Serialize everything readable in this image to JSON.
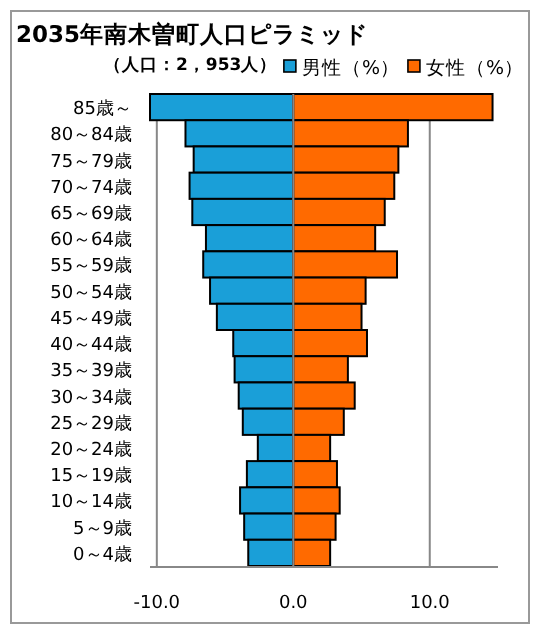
{
  "chart_data": {
    "type": "bar",
    "orientation": "horizontal",
    "title": "2035年南木曽町人口ピラミッド",
    "subtitle": "（人口：2，953人）",
    "categories": [
      "85歳～",
      "80～84歳",
      "75～79歳",
      "70～74歳",
      "65～69歳",
      "60～64歳",
      "55～59歳",
      "50～54歳",
      "45～49歳",
      "40～44歳",
      "35～39歳",
      "30～34歳",
      "25～29歳",
      "20～24歳",
      "15～19歳",
      "10～14歳",
      "5～9歳",
      "0～4歳"
    ],
    "series": [
      {
        "name": "男性（%）",
        "color": "#1a9fd8",
        "values": [
          -10.5,
          -7.9,
          -7.3,
          -7.6,
          -7.4,
          -6.4,
          -6.6,
          -6.1,
          -5.6,
          -4.4,
          -4.3,
          -4.0,
          -3.7,
          -2.6,
          -3.4,
          -3.9,
          -3.6,
          -3.3
        ]
      },
      {
        "name": "女性（%）",
        "color": "#ff6a00",
        "values": [
          14.6,
          8.4,
          7.7,
          7.4,
          6.7,
          6.0,
          7.6,
          5.3,
          5.0,
          5.4,
          4.0,
          4.5,
          3.7,
          2.7,
          3.2,
          3.4,
          3.1,
          2.7
        ]
      }
    ],
    "stacked": true,
    "xlim": [
      -10.5,
      15
    ],
    "xticks": [
      {
        "value": -10,
        "label": "-10.0"
      },
      {
        "value": 0,
        "label": "0.0"
      },
      {
        "value": 10,
        "label": "10.0"
      }
    ],
    "grid": "x",
    "legend": "top right"
  }
}
